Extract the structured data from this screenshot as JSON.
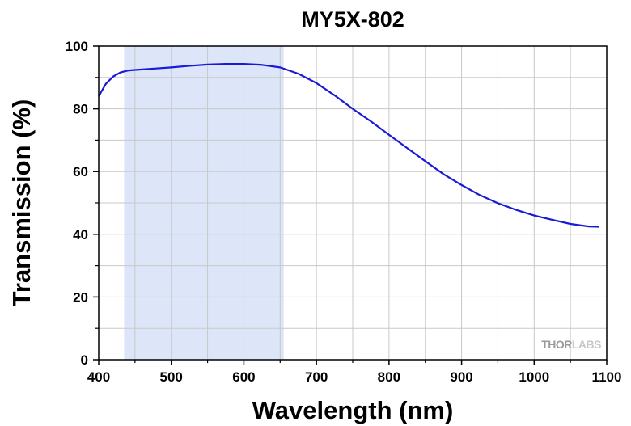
{
  "chart_data": {
    "type": "line",
    "title": "MY5X-802",
    "xlabel": "Wavelength (nm)",
    "ylabel": "Transmission (%)",
    "xlim": [
      400,
      1100
    ],
    "ylim": [
      0,
      100
    ],
    "x_ticks": [
      400,
      500,
      600,
      700,
      800,
      900,
      1000,
      1100
    ],
    "y_ticks": [
      0,
      20,
      40,
      60,
      80,
      100
    ],
    "grid": true,
    "shaded_region": {
      "x_start": 435,
      "x_end": 655,
      "color": "#dce6f8"
    },
    "line_color": "#1a1ad6",
    "series": [
      {
        "x": [
          400,
          410,
          420,
          430,
          440,
          450,
          475,
          500,
          525,
          550,
          575,
          600,
          625,
          650,
          675,
          700,
          725,
          750,
          775,
          800,
          825,
          850,
          875,
          900,
          925,
          950,
          975,
          1000,
          1025,
          1050,
          1075,
          1090
        ],
        "y": [
          84.0,
          88.0,
          90.3,
          91.6,
          92.2,
          92.4,
          92.8,
          93.2,
          93.7,
          94.1,
          94.3,
          94.3,
          94.0,
          93.2,
          91.2,
          88.2,
          84.3,
          80.0,
          76.0,
          71.7,
          67.5,
          63.3,
          59.2,
          55.7,
          52.5,
          49.9,
          47.8,
          46.0,
          44.6,
          43.3,
          42.5,
          42.4
        ]
      }
    ]
  },
  "watermark": {
    "brand_left": "THOR",
    "brand_right": "LABS"
  }
}
